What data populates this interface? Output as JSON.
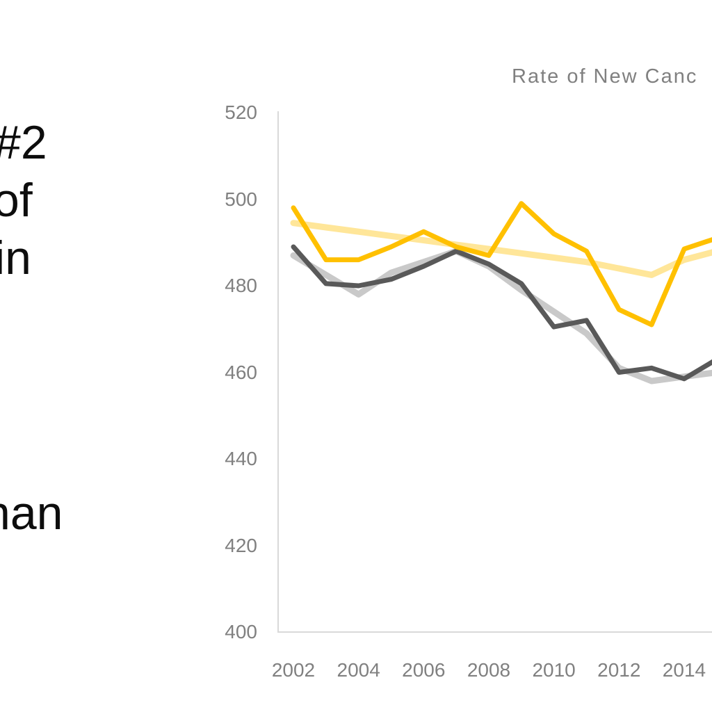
{
  "left_text": {
    "color": "#0d0d0d",
    "lines": [
      {
        "text": "#2"
      },
      {
        "text": "of"
      },
      {
        "text": "in"
      },
      {
        "text": "han"
      }
    ]
  },
  "chart": {
    "title": "Rate of New Canc",
    "title_color": "#808080",
    "axis_color": "#d9d9d9",
    "tick_label_color": "#808080",
    "y_ticks": [
      520,
      500,
      480,
      460,
      440,
      420,
      400
    ],
    "x_ticks": [
      2002,
      2004,
      2006,
      2008,
      2010,
      2012,
      2014
    ]
  },
  "chart_data": {
    "type": "line",
    "title": "Rate of New Canc",
    "xlabel": "",
    "ylabel": "",
    "ylim": [
      400,
      520
    ],
    "xlim_visible": [
      2002,
      2015
    ],
    "grid": false,
    "legend_position": "not visible (cut off at image edge)",
    "x": [
      2002,
      2003,
      2004,
      2005,
      2006,
      2007,
      2008,
      2009,
      2010,
      2011,
      2012,
      2013,
      2014,
      2015
    ],
    "series": [
      {
        "name": "gold-trend-line",
        "color": "#ffe699",
        "stroke_width": 9,
        "values": [
          494.5,
          493.5,
          492.5,
          491.5,
          490.5,
          489.5,
          488.5,
          487.5,
          486.5,
          485.5,
          484,
          482.5,
          486,
          488
        ]
      },
      {
        "name": "gray-trend-line",
        "color": "#c9c9c9",
        "stroke_width": 9,
        "values": [
          487,
          482.5,
          478,
          483,
          485.5,
          488,
          484.5,
          479,
          474,
          469,
          461,
          458,
          459,
          460
        ]
      },
      {
        "name": "dark-gray-series",
        "color": "#595959",
        "stroke_width": 7,
        "values": [
          489,
          480.5,
          480,
          481.5,
          484.5,
          488,
          485,
          480.5,
          470.5,
          472,
          460,
          461,
          458.5,
          463
        ]
      },
      {
        "name": "gold-series",
        "color": "#ffc000",
        "stroke_width": 7,
        "values": [
          498,
          486,
          486,
          489,
          492.5,
          489,
          487,
          499,
          492,
          488,
          474.5,
          471,
          488.5,
          491
        ]
      }
    ]
  }
}
